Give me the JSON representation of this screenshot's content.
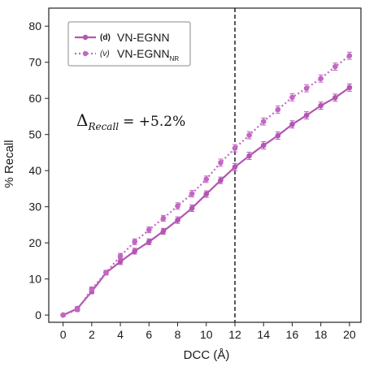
{
  "chart_data": {
    "type": "line",
    "xlabel": "DCC (Å)",
    "ylabel": "% Recall",
    "xlim": [
      -1,
      20.8
    ],
    "ylim": [
      -2,
      85
    ],
    "xticks": [
      0,
      2,
      4,
      6,
      8,
      10,
      12,
      14,
      16,
      18,
      20
    ],
    "yticks": [
      0,
      10,
      20,
      30,
      40,
      50,
      60,
      70,
      80
    ],
    "vline_x": 12,
    "grid": false,
    "legend_position": "top-left",
    "annotation": {
      "delta": "Δ",
      "subscript": "Recall",
      "value_text": "= +5.2%"
    },
    "x": [
      0,
      1,
      2,
      3,
      4,
      5,
      6,
      7,
      8,
      9,
      10,
      11,
      12,
      13,
      14,
      15,
      16,
      17,
      18,
      19,
      20
    ],
    "series": [
      {
        "name": "VN-EGNN",
        "marker_tag": "(d)",
        "style": "solid",
        "color": "#b455b4",
        "values": [
          0,
          1.8,
          6.5,
          11.7,
          14.8,
          17.7,
          20.3,
          23.2,
          26.3,
          29.6,
          33.5,
          37.3,
          41.0,
          44.1,
          47.0,
          49.7,
          52.8,
          55.3,
          58.0,
          60.2,
          63.0
        ],
        "errors": [
          0.3,
          0.5,
          0.6,
          0.6,
          0.8,
          0.8,
          0.8,
          0.8,
          0.9,
          0.9,
          0.9,
          0.9,
          1.0,
          1.0,
          1.0,
          1.0,
          1.0,
          1.0,
          1.0,
          1.0,
          1.0
        ]
      },
      {
        "name": "VN-EGNN",
        "name_subscript": "NR",
        "marker_tag": "(v)",
        "style": "dotted",
        "color": "#c267c2",
        "values": [
          0,
          1.5,
          7.2,
          11.8,
          16.3,
          20.3,
          23.6,
          26.8,
          30.2,
          33.6,
          37.6,
          42.2,
          46.2,
          49.8,
          53.6,
          56.9,
          60.3,
          62.8,
          65.5,
          68.8,
          71.8
        ],
        "errors": [
          0.3,
          0.5,
          0.6,
          0.6,
          0.8,
          0.8,
          0.8,
          0.8,
          0.9,
          0.9,
          0.9,
          1.0,
          1.0,
          1.0,
          1.0,
          1.0,
          1.0,
          1.0,
          1.0,
          1.0,
          1.0
        ]
      }
    ]
  }
}
